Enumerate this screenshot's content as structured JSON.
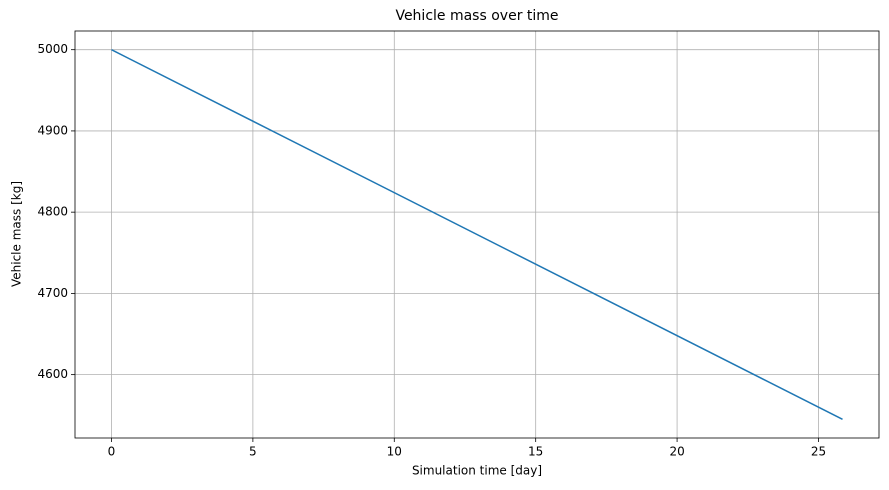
{
  "chart_data": {
    "type": "line",
    "title": "Vehicle mass over time",
    "x_label": "Simulation time [day]",
    "y_label": "Vehicle mass [kg]",
    "x": [
      0,
      25.85
    ],
    "series": [
      {
        "name": "Vehicle mass",
        "color": "#1f77b4",
        "values": [
          5000,
          4545
        ]
      }
    ],
    "xlim": [
      -1.29,
      27.14
    ],
    "xticks": [
      0,
      5,
      10,
      15,
      20,
      25
    ],
    "ylim": [
      4522,
      5023
    ],
    "yticks": [
      4600,
      4700,
      4800,
      4900,
      5000
    ],
    "grid": true
  }
}
